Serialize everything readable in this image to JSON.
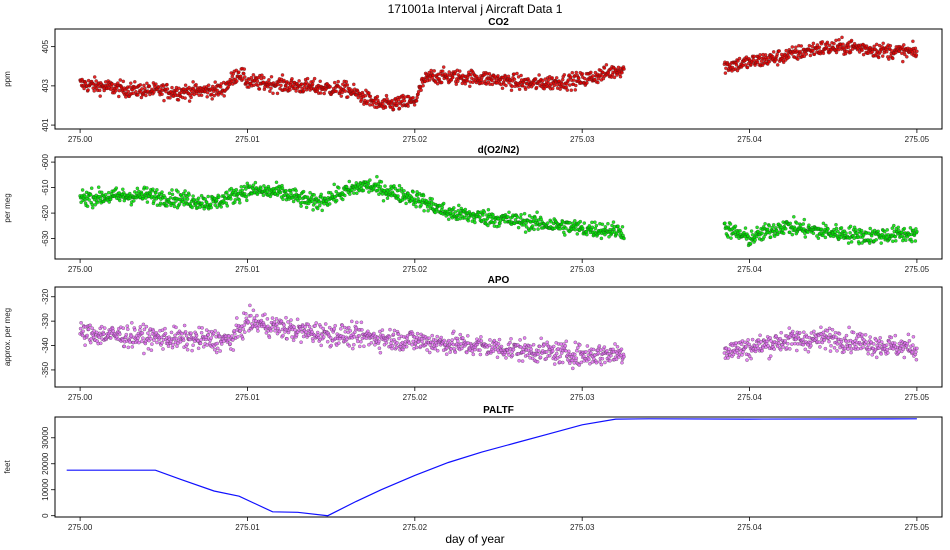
{
  "figure": {
    "suptitle": "171001a   Interval j Aircraft Data 1",
    "xlabel": "day of year"
  },
  "colors": {
    "co2": "#e00000",
    "o2n2": "#00e000",
    "apo": "#e070f0",
    "paltf": "#1010ff"
  },
  "chart_data": [
    {
      "type": "scatter",
      "title": "CO2",
      "ylabel": "ppm",
      "xlim": [
        274.9985,
        275.0515
      ],
      "ylim": [
        400.8,
        405.9
      ],
      "xticks": [
        "275.00",
        "275.01",
        "275.02",
        "275.03",
        "275.04",
        "275.05"
      ],
      "yticks": [
        "401",
        "403",
        "405"
      ],
      "segments": [
        {
          "x": [
            275.0,
            275.003,
            275.006,
            275.0085,
            275.0095,
            275.01,
            275.013,
            275.016,
            275.018,
            275.019,
            275.02,
            275.0205,
            275.021,
            275.024,
            275.027,
            275.03,
            275.0325
          ],
          "y": [
            403.1,
            402.8,
            402.7,
            402.8,
            403.7,
            403.2,
            403.0,
            402.8,
            402.0,
            402.1,
            402.2,
            403.2,
            403.5,
            403.4,
            403.1,
            403.3,
            403.9
          ]
        },
        {
          "x": [
            275.0385,
            275.04,
            275.042,
            275.044,
            275.046,
            275.048,
            275.05
          ],
          "y": [
            404.0,
            404.2,
            404.5,
            404.9,
            405.0,
            404.8,
            404.7
          ]
        }
      ],
      "noise": 0.3
    },
    {
      "type": "scatter",
      "title": "d(O2/N2)",
      "ylabel": "per meg",
      "xlim": [
        274.9985,
        275.0515
      ],
      "ylim": [
        -638,
        -598
      ],
      "xticks": [
        "275.00",
        "275.01",
        "275.02",
        "275.03",
        "275.04",
        "275.05"
      ],
      "yticks": [
        "-630",
        "-620",
        "-610",
        "-600"
      ],
      "segments": [
        {
          "x": [
            275.0,
            275.004,
            275.008,
            275.01,
            275.012,
            275.014,
            275.017,
            275.02,
            275.022,
            275.026,
            275.03,
            275.0325
          ],
          "y": [
            -614,
            -613,
            -616,
            -611,
            -612,
            -616,
            -609,
            -614,
            -620,
            -623,
            -626,
            -627
          ]
        },
        {
          "x": [
            275.0385,
            275.04,
            275.042,
            275.044,
            275.047,
            275.05
          ],
          "y": [
            -626,
            -630,
            -625,
            -627,
            -629,
            -628
          ]
        }
      ],
      "noise": 2.5
    },
    {
      "type": "scatter",
      "title": "APO",
      "ylabel": "approx. per meg",
      "xlim": [
        274.9985,
        275.0515
      ],
      "ylim": [
        -357,
        -316
      ],
      "xticks": [
        "275.00",
        "275.01",
        "275.02",
        "275.03",
        "275.04",
        "275.05"
      ],
      "yticks": [
        "-350",
        "-340",
        "-330",
        "-320"
      ],
      "segments": [
        {
          "x": [
            275.0,
            275.005,
            275.009,
            275.01,
            275.013,
            275.016,
            275.02,
            275.025,
            275.03,
            275.0325
          ],
          "y": [
            -335,
            -337,
            -338,
            -330,
            -334,
            -336,
            -338,
            -341,
            -344,
            -343
          ]
        },
        {
          "x": [
            275.0385,
            275.04,
            275.042,
            275.045,
            275.048,
            275.05
          ],
          "y": [
            -342,
            -341,
            -338,
            -337,
            -340,
            -341
          ]
        }
      ],
      "noise": 3.5
    },
    {
      "type": "line",
      "title": "PALTF",
      "ylabel": "feet",
      "xlim": [
        274.9985,
        275.0515
      ],
      "ylim": [
        -500,
        38000
      ],
      "xticks": [
        "275.00",
        "275.01",
        "275.02",
        "275.03",
        "275.04",
        "275.05"
      ],
      "yticks": [
        "0",
        "10000",
        "20000",
        "30000"
      ],
      "x": [
        274.9992,
        275.0045,
        275.006,
        275.008,
        275.0095,
        275.0115,
        275.013,
        275.0148,
        275.0165,
        275.018,
        275.02,
        275.022,
        275.024,
        275.026,
        275.028,
        275.03,
        275.032,
        275.034,
        275.04,
        275.05
      ],
      "y": [
        17500,
        17500,
        14000,
        9500,
        7500,
        1500,
        1300,
        0,
        5500,
        10000,
        15500,
        20500,
        24500,
        28000,
        31500,
        35000,
        37200,
        37300,
        37200,
        37300
      ]
    }
  ]
}
